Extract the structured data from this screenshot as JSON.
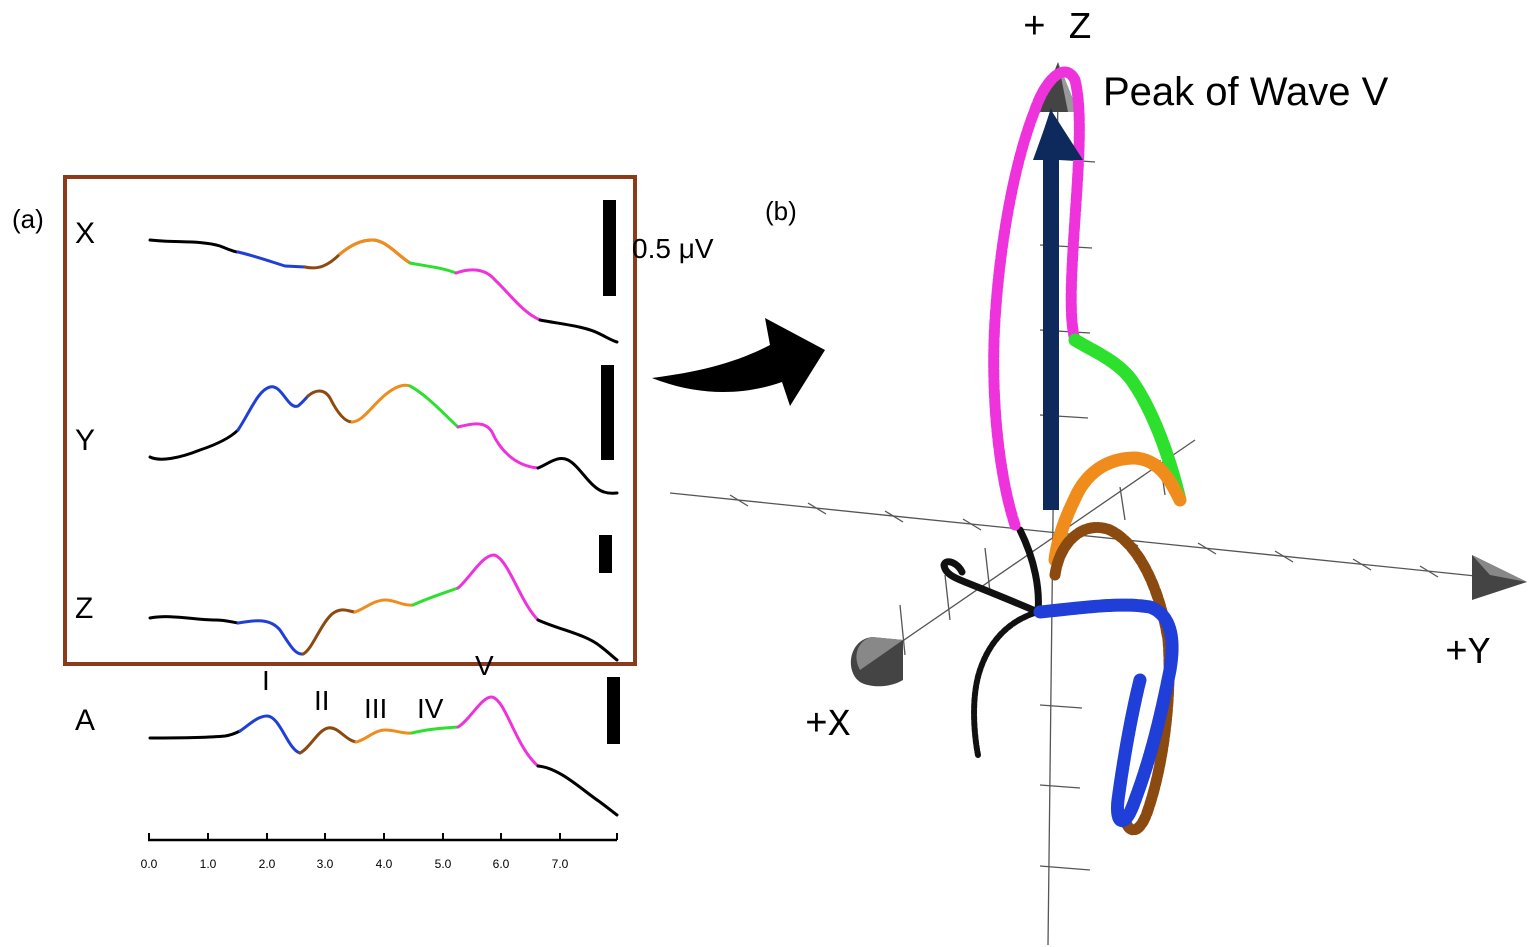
{
  "panel_a": {
    "label": "(a)",
    "channels": [
      "X",
      "Y",
      "Z",
      "A"
    ],
    "scale_label": "0.5 μV",
    "wave_labels": [
      "I",
      "II",
      "III",
      "IV",
      "V"
    ],
    "x_ticks": [
      "0.0",
      "1.0",
      "2.0",
      "3.0",
      "4.0",
      "5.0",
      "6.0",
      "7.0"
    ]
  },
  "panel_b": {
    "label": "(b)",
    "axis_z": "+ Z",
    "axis_y": "+Y",
    "axis_x": "+X",
    "annotation": "Peak of Wave V"
  },
  "colors": {
    "baseline": "#000000",
    "wave_I": "#1f3fd8",
    "wave_II": "#8b4a10",
    "wave_III": "#f08c1c",
    "wave_IV": "#2ee02e",
    "wave_V": "#ee33dd",
    "box": "#8b3a1a",
    "arrow": "#0e2a5c"
  }
}
